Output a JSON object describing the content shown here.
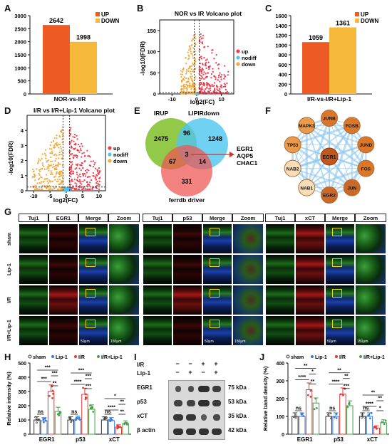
{
  "panel_labels": [
    "A",
    "B",
    "C",
    "D",
    "E",
    "F",
    "G",
    "H",
    "I",
    "J"
  ],
  "panelA": {
    "chart_data": {
      "type": "bar",
      "categories": [
        "UP",
        "DOWN"
      ],
      "values": [
        2642,
        1998
      ],
      "value_labels": [
        "2642",
        "1998"
      ],
      "xlabel": "NOR-vs-I/R",
      "ylim": [
        0,
        3000
      ],
      "yticks": [
        0,
        500,
        1000,
        1500,
        2000,
        2500,
        3000
      ],
      "legend": [
        "UP",
        "DOWN"
      ],
      "legend_position": "top-right",
      "colors": {
        "UP": "#ee5a24",
        "DOWN": "#f6b93b"
      }
    }
  },
  "panelB": {
    "chart_data": {
      "type": "scatter",
      "title": "NOR vs IR Volcano plot",
      "xlabel": "log2(FC)",
      "ylabel": "-log10(FDR)",
      "xlim": [
        -15,
        15
      ],
      "ylim": [
        0,
        175
      ],
      "xticks": [
        -10,
        0,
        10
      ],
      "yticks": [
        0,
        50,
        100,
        150
      ],
      "legend": [
        "up",
        "nodiff",
        "down"
      ],
      "legend_position": "right",
      "colors": {
        "up": "#ee3b4d",
        "nodiff": "#4fc3e8",
        "down": "#f2a93b"
      }
    }
  },
  "panelC": {
    "chart_data": {
      "type": "bar",
      "categories": [
        "UP",
        "DOWN"
      ],
      "values": [
        1059,
        1361
      ],
      "value_labels": [
        "1059",
        "1361"
      ],
      "xlabel": "I/R-vs-I/R+Lip-1",
      "ylim": [
        0,
        1600
      ],
      "yticks": [
        0,
        200,
        400,
        600,
        800,
        1000,
        1200,
        1400,
        1600
      ],
      "legend": [
        "UP",
        "DOWN"
      ],
      "legend_position": "top-right",
      "colors": {
        "UP": "#ee5a24",
        "DOWN": "#f6b93b"
      }
    }
  },
  "panelD": {
    "chart_data": {
      "type": "scatter",
      "title": "I/R vs I/R+Lip-1 Volcano plot",
      "xlabel": "log2(FC)",
      "ylabel": "-log10(FDR)",
      "xlim": [
        -12,
        12
      ],
      "ylim": [
        0,
        5
      ],
      "xticks": [
        -10,
        -5,
        0,
        5,
        10
      ],
      "yticks": [
        0,
        1,
        2,
        3,
        4
      ],
      "legend": [
        "up",
        "nodiff",
        "down"
      ],
      "legend_position": "right",
      "colors": {
        "up": "#ee3b4d",
        "nodiff": "#4fc3e8",
        "down": "#f2a93b"
      }
    }
  },
  "panelE": {
    "sets": [
      "IRUP",
      "LIPIRdown",
      "ferrdb driver"
    ],
    "counts": {
      "only_a": "2475",
      "only_b": "1248",
      "only_c": "331",
      "ab": "96",
      "ac": "67",
      "bc": "14",
      "abc": "3"
    },
    "genes": [
      "EGR1",
      "AQP5",
      "CHAC1"
    ],
    "colors": {
      "a": "#8dc63f",
      "b": "#4cc6ef",
      "c": "#ef5350"
    }
  },
  "panelF": {
    "center": "EGR1",
    "nodes": [
      "JUNB",
      "FOSB",
      "JUND",
      "FOS",
      "JUN",
      "EGR2",
      "NAB1",
      "NAB2",
      "TP53",
      "MAPK3"
    ]
  },
  "panelG": {
    "groups": [
      {
        "headers": [
          "Tuj1",
          "EGR1",
          "Merge",
          "Zoom"
        ]
      },
      {
        "headers": [
          "Tuj1",
          "p53",
          "Merge",
          "Zoom"
        ]
      },
      {
        "headers": [
          "Tuj1",
          "xCT",
          "Merge",
          "Zoom"
        ]
      }
    ],
    "rows": [
      "sham",
      "Lip-1",
      "I/R",
      "I/R+Lip-1"
    ],
    "scalebars": [
      "50μm",
      "150μm"
    ]
  },
  "panelH": {
    "chart_data": {
      "type": "bar",
      "categories": [
        "EGR1",
        "p53",
        "xCT"
      ],
      "ylabel": "Relative intensity (%)",
      "ylim": [
        0,
        500
      ],
      "yticks": [
        0,
        100,
        200,
        300,
        400,
        500
      ],
      "legend": [
        "sham",
        "Lip-1",
        "I/R",
        "I/R+Lip-1"
      ],
      "legend_position": "top",
      "series": [
        {
          "name": "sham",
          "values": [
            100,
            100,
            100
          ]
        },
        {
          "name": "Lip-1",
          "values": [
            95,
            105,
            95
          ]
        },
        {
          "name": "I/R",
          "values": [
            300,
            280,
            50
          ]
        },
        {
          "name": "I/R+Lip-1",
          "values": [
            160,
            175,
            75
          ]
        }
      ],
      "colors": {
        "sham": "#333333",
        "Lip-1": "#3a7bd5",
        "I/R": "#e53935",
        "I/R+Lip-1": "#43a047"
      }
    },
    "sig": {
      "EGR1": [
        "***",
        "***",
        "***",
        "ns",
        "**"
      ],
      "p53": [
        "***",
        "***",
        "****",
        "ns",
        "***"
      ],
      "xCT": [
        "*",
        "**",
        "****",
        "ns",
        "**"
      ]
    }
  },
  "panelI": {
    "ir_label": "I/R",
    "lip_label": "Lip-1",
    "ir_signs": [
      "−",
      "−",
      "+",
      "+"
    ],
    "lip_signs": [
      "−",
      "+",
      "−",
      "+"
    ],
    "proteins": [
      "EGR1",
      "p53",
      "xCT",
      "β actin"
    ],
    "sizes": [
      "75 kDa",
      "53 kDa",
      "35 kDa",
      "42 kDa"
    ]
  },
  "panelJ": {
    "chart_data": {
      "type": "bar",
      "categories": [
        "EGR1",
        "p53",
        "xCT"
      ],
      "ylabel": "Relative band density (%)",
      "ylim": [
        0,
        400
      ],
      "yticks": [
        0,
        100,
        200,
        300,
        400
      ],
      "legend": [
        "sham",
        "Lip-1",
        "I/R",
        "I/R+Lip-1"
      ],
      "legend_position": "top",
      "series": [
        {
          "name": "sham",
          "values": [
            100,
            100,
            100
          ]
        },
        {
          "name": "Lip-1",
          "values": [
            100,
            100,
            100
          ]
        },
        {
          "name": "I/R",
          "values": [
            250,
            225,
            35
          ]
        },
        {
          "name": "I/R+Lip-1",
          "values": [
            175,
            160,
            65
          ]
        }
      ],
      "colors": {
        "sham": "#333333",
        "Lip-1": "#3a7bd5",
        "I/R": "#e53935",
        "I/R+Lip-1": "#43a047"
      }
    },
    "sig": {
      "EGR1": [
        "**",
        "*",
        "****",
        "ns",
        "**"
      ],
      "p53": [
        "**",
        "**",
        "****",
        "ns",
        "***"
      ],
      "xCT": [
        "**",
        "**",
        "****",
        "ns",
        "*"
      ]
    }
  }
}
